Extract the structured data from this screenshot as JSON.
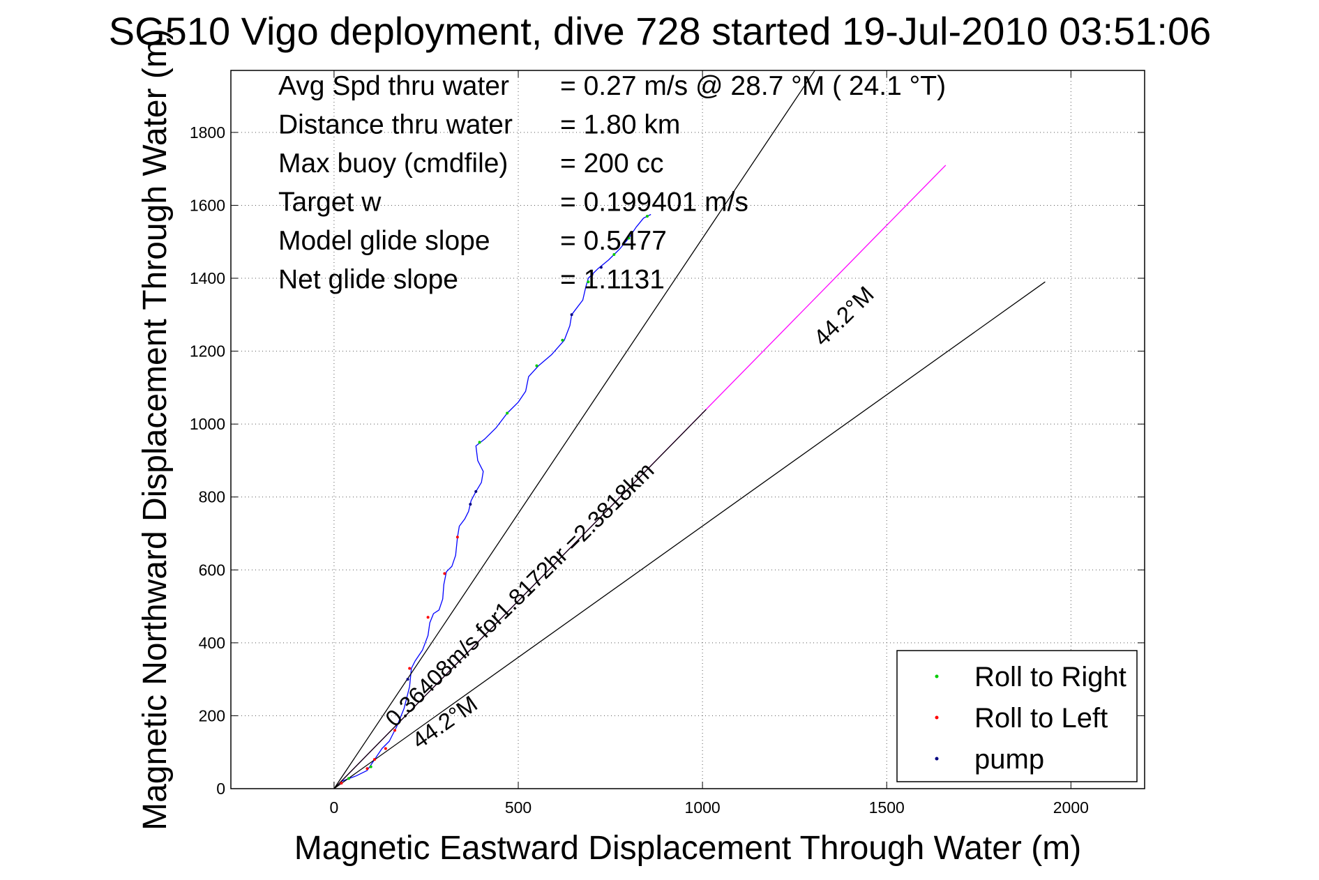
{
  "chart_data": {
    "type": "line",
    "title": "SG510 Vigo deployment, dive 728 started 19-Jul-2010 03:51:06",
    "xlabel": "Magnetic Eastward Displacement Through Water (m)",
    "ylabel": "Magnetic Northward Displacement Through Water (m)",
    "xlim": [
      -280,
      2200
    ],
    "ylim": [
      0,
      1970
    ],
    "xticks": [
      0,
      500,
      1000,
      1500,
      2000
    ],
    "xtick_labels": [
      "0",
      "500",
      "1000",
      "1500",
      "2000"
    ],
    "yticks": [
      0,
      200,
      400,
      600,
      800,
      1000,
      1200,
      1400,
      1600,
      1800
    ],
    "ytick_labels": [
      "0",
      "200",
      "400",
      "600",
      "800",
      "1000",
      "1200",
      "1400",
      "1600",
      "1800"
    ],
    "grid": true,
    "legend_position": "bottom-right",
    "info_lines": [
      {
        "label": "Avg Spd thru water",
        "value": "=  0.27 m/s @  28.7 °M ( 24.1 °T)"
      },
      {
        "label": "Distance thru water",
        "value": "=  1.80 km"
      },
      {
        "label": "Max buoy (cmdfile)",
        "value": "= 200 cc"
      },
      {
        "label": "Target w",
        "value": "= 0.199401 m/s"
      },
      {
        "label": "Model glide slope",
        "value": "= 0.5477"
      },
      {
        "label": "Net glide slope",
        "value": "= 1.1131"
      }
    ],
    "annotations": {
      "drift": "0.36408m/s for1.8172hr =2.3818km",
      "heading_lower": "44.2°M",
      "heading_upper": "44.2°M"
    },
    "legend": [
      {
        "label": "Roll to Right",
        "color": "#00cc00"
      },
      {
        "label": "Roll to Left",
        "color": "#ff0000"
      },
      {
        "label": "pump",
        "color": "#000080"
      }
    ],
    "series": [
      {
        "name": "track",
        "color": "#0000ff",
        "points": [
          [
            0,
            0
          ],
          [
            20,
            20
          ],
          [
            60,
            35
          ],
          [
            90,
            50
          ],
          [
            110,
            80
          ],
          [
            130,
            110
          ],
          [
            150,
            130
          ],
          [
            170,
            170
          ],
          [
            190,
            220
          ],
          [
            205,
            280
          ],
          [
            210,
            330
          ],
          [
            220,
            350
          ],
          [
            240,
            380
          ],
          [
            255,
            420
          ],
          [
            260,
            455
          ],
          [
            270,
            480
          ],
          [
            285,
            490
          ],
          [
            295,
            520
          ],
          [
            298,
            560
          ],
          [
            305,
            595
          ],
          [
            320,
            610
          ],
          [
            330,
            640
          ],
          [
            335,
            690
          ],
          [
            340,
            720
          ],
          [
            355,
            740
          ],
          [
            365,
            760
          ],
          [
            372,
            790
          ],
          [
            385,
            815
          ],
          [
            400,
            840
          ],
          [
            405,
            870
          ],
          [
            390,
            900
          ],
          [
            385,
            940
          ],
          [
            410,
            960
          ],
          [
            440,
            990
          ],
          [
            470,
            1030
          ],
          [
            500,
            1060
          ],
          [
            520,
            1090
          ],
          [
            528,
            1130
          ],
          [
            555,
            1160
          ],
          [
            590,
            1190
          ],
          [
            625,
            1230
          ],
          [
            640,
            1270
          ],
          [
            645,
            1300
          ],
          [
            660,
            1320
          ],
          [
            675,
            1340
          ],
          [
            683,
            1375
          ],
          [
            690,
            1400
          ],
          [
            715,
            1425
          ],
          [
            745,
            1450
          ],
          [
            775,
            1480
          ],
          [
            800,
            1510
          ],
          [
            820,
            1540
          ],
          [
            840,
            1565
          ],
          [
            860,
            1575
          ]
        ]
      },
      {
        "name": "drift",
        "color": "#ff00ff",
        "points": [
          [
            0,
            0
          ],
          [
            1660,
            1710
          ]
        ]
      },
      {
        "name": "heading-left",
        "color": "#000000",
        "points": [
          [
            0,
            0
          ],
          [
            1305,
            1970
          ]
        ]
      },
      {
        "name": "heading-center",
        "color": "#000000",
        "points": [
          [
            0,
            0
          ],
          [
            1010,
            1040
          ]
        ]
      },
      {
        "name": "heading-right",
        "color": "#000000",
        "points": [
          [
            0,
            0
          ],
          [
            1930,
            1390
          ]
        ]
      }
    ],
    "markers": {
      "roll_right": [
        [
          40,
          28
        ],
        [
          100,
          60
        ],
        [
          550,
          1160
        ],
        [
          620,
          1230
        ],
        [
          690,
          1390
        ],
        [
          760,
          1465
        ],
        [
          800,
          1510
        ],
        [
          850,
          1570
        ],
        [
          470,
          1030
        ],
        [
          395,
          950
        ]
      ],
      "roll_left": [
        [
          110,
          80
        ],
        [
          140,
          110
        ],
        [
          165,
          160
        ],
        [
          205,
          330
        ],
        [
          255,
          470
        ],
        [
          300,
          590
        ],
        [
          335,
          690
        ],
        [
          20,
          15
        ],
        [
          90,
          55
        ]
      ],
      "pump": [
        [
          200,
          300
        ],
        [
          370,
          780
        ],
        [
          385,
          815
        ],
        [
          645,
          1300
        ],
        [
          700,
          1410
        ],
        [
          725,
          1430
        ]
      ]
    }
  }
}
